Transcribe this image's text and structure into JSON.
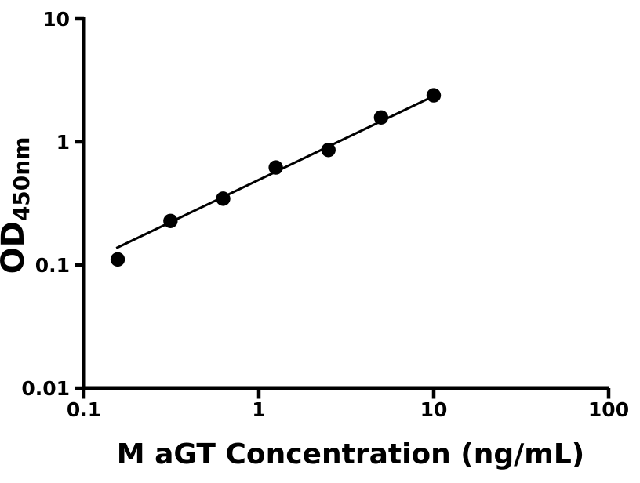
{
  "chart_data": {
    "type": "scatter",
    "title": "",
    "xlabel": "M aGT Concentration (ng/mL)",
    "ylabel_main": "OD",
    "ylabel_sub": "450nm",
    "x_scale": "log",
    "y_scale": "log",
    "xlim": [
      0.1,
      100
    ],
    "ylim": [
      0.01,
      10
    ],
    "grid": false,
    "legend": "none",
    "x_ticks": [
      {
        "value": 0.1,
        "label": "0.1"
      },
      {
        "value": 1,
        "label": "1"
      },
      {
        "value": 10,
        "label": "10"
      },
      {
        "value": 100,
        "label": "100"
      }
    ],
    "y_ticks": [
      {
        "value": 0.01,
        "label": "0.01"
      },
      {
        "value": 0.1,
        "label": "0.1"
      },
      {
        "value": 1,
        "label": "1"
      },
      {
        "value": 10,
        "label": "10"
      }
    ],
    "points": [
      {
        "x": 0.156,
        "y": 0.111
      },
      {
        "x": 0.3125,
        "y": 0.228
      },
      {
        "x": 0.625,
        "y": 0.346
      },
      {
        "x": 1.25,
        "y": 0.62
      },
      {
        "x": 2.5,
        "y": 0.86
      },
      {
        "x": 5,
        "y": 1.58
      },
      {
        "x": 10,
        "y": 2.39
      }
    ],
    "trendline": {
      "x1": 0.153,
      "y1": 0.137,
      "x2": 10.2,
      "y2": 2.39
    },
    "marker_color": "#000000",
    "line_color": "#000000",
    "axis_color": "#000000",
    "background": "#ffffff"
  }
}
